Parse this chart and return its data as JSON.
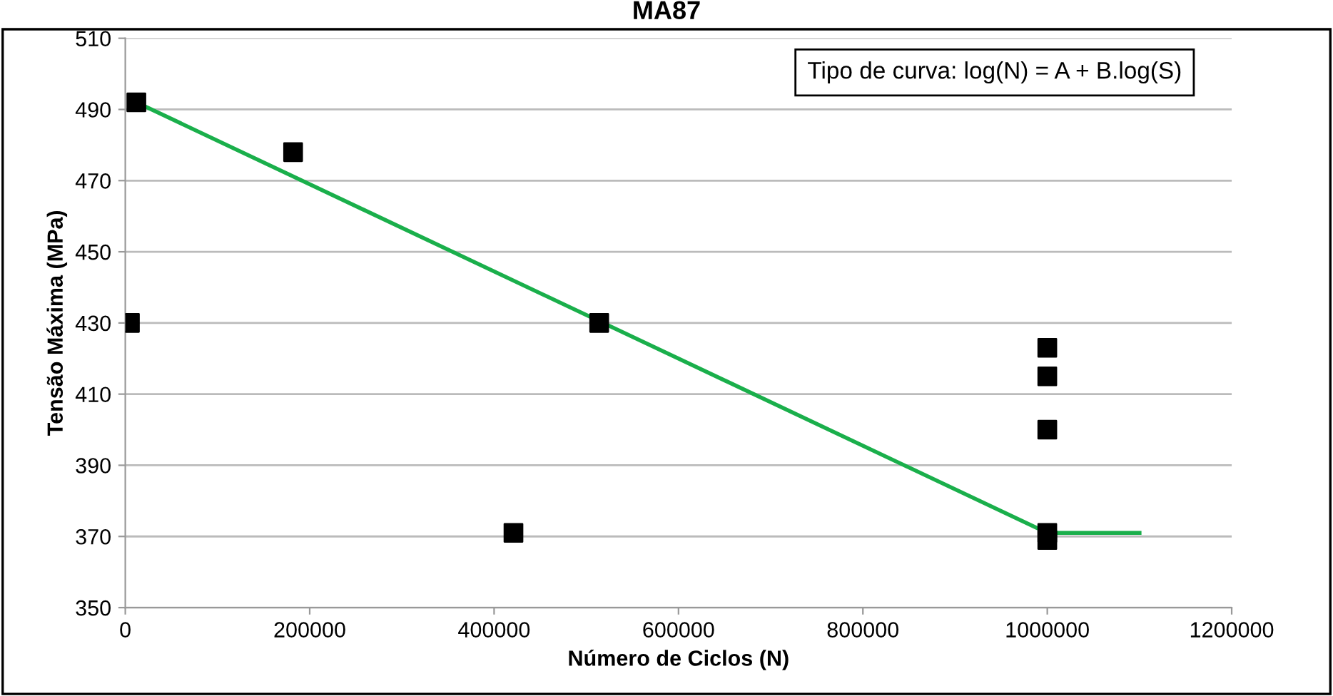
{
  "chart_data": {
    "type": "scatter",
    "title": "MA87",
    "xlabel": "Número de Ciclos (N)",
    "ylabel": "Tensão Máxima (MPa)",
    "annotations": [
      "Tipo de curva: log(N) = A + B.log(S)"
    ],
    "xlim": [
      0,
      1200000
    ],
    "xticks": [
      0,
      200000,
      400000,
      600000,
      800000,
      1000000,
      1200000
    ],
    "ylim": [
      350,
      510
    ],
    "yticks": [
      350,
      370,
      390,
      410,
      430,
      450,
      470,
      490,
      510
    ],
    "grid": "y",
    "legend": false,
    "series": [
      {
        "marker": "square",
        "color": "#000000",
        "x": [
          12000,
          5000,
          182000,
          421000,
          514000,
          1000000,
          1000000,
          1000000,
          1000000,
          1000000
        ],
        "values": [
          492,
          430,
          478,
          371,
          430,
          423,
          415,
          400,
          371,
          369
        ]
      },
      {
        "type": "line",
        "marker": "none",
        "color": "#1aaf4b",
        "x": [
          12000,
          1000000,
          1100000
        ],
        "values": [
          492,
          371,
          371
        ]
      }
    ]
  }
}
